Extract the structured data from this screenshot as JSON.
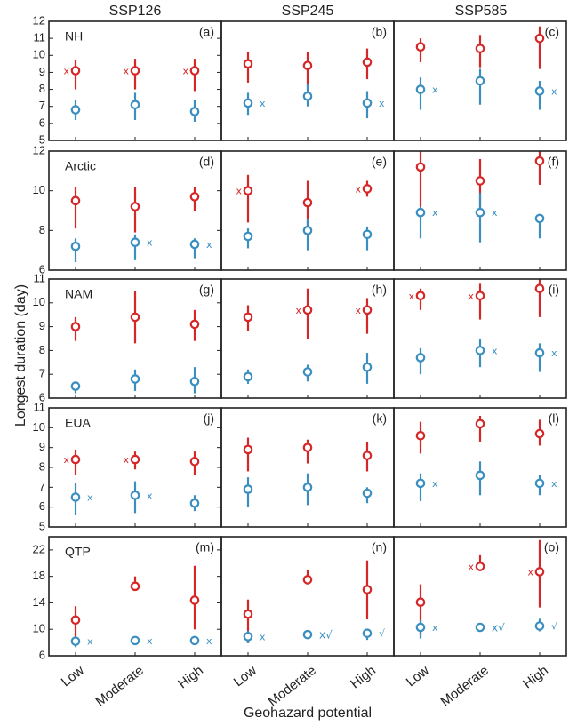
{
  "figure": {
    "columns": [
      "SSP126",
      "SSP245",
      "SSP585"
    ],
    "ylabel": "Longest duration (day)",
    "xlabel": "Geohazard potential",
    "categories": [
      "Low",
      "Moderate",
      "High"
    ],
    "colors": {
      "red": "#d62728",
      "blue": "#3a8fc0",
      "frame": "#222222",
      "text": "#222222"
    }
  },
  "chart_data": [
    {
      "type": "scatter",
      "panel": "(a)",
      "region": "NH",
      "scenario": "SSP126",
      "ylim": [
        5,
        12
      ],
      "yticks": [
        5,
        6,
        7,
        8,
        9,
        10,
        11,
        12
      ],
      "series": [
        {
          "name": "red",
          "values": [
            9.1,
            9.1,
            9.1
          ],
          "lo": [
            8.0,
            8.0,
            7.9
          ],
          "hi": [
            9.7,
            9.8,
            9.8
          ],
          "mark": [
            "x",
            "x",
            "x"
          ]
        },
        {
          "name": "blue",
          "values": [
            6.8,
            7.1,
            6.7
          ],
          "lo": [
            6.2,
            6.2,
            6.1
          ],
          "hi": [
            7.4,
            7.8,
            7.4
          ],
          "mark": [
            "",
            "",
            ""
          ]
        }
      ]
    },
    {
      "type": "scatter",
      "panel": "(b)",
      "region": "",
      "scenario": "SSP245",
      "ylim": [
        5,
        12
      ],
      "yticks": [
        5,
        6,
        7,
        8,
        9,
        10,
        11,
        12
      ],
      "series": [
        {
          "name": "red",
          "values": [
            9.5,
            9.4,
            9.6
          ],
          "lo": [
            8.4,
            8.2,
            8.6
          ],
          "hi": [
            10.2,
            10.2,
            10.4
          ],
          "mark": [
            "",
            "",
            ""
          ]
        },
        {
          "name": "blue",
          "values": [
            7.2,
            7.6,
            7.2
          ],
          "lo": [
            6.5,
            7.0,
            6.3
          ],
          "hi": [
            7.8,
            8.3,
            7.9
          ],
          "mark": [
            "x",
            "",
            "x"
          ]
        }
      ]
    },
    {
      "type": "scatter",
      "panel": "(c)",
      "region": "",
      "scenario": "SSP585",
      "ylim": [
        5,
        12
      ],
      "yticks": [
        5,
        6,
        7,
        8,
        9,
        10,
        11,
        12
      ],
      "series": [
        {
          "name": "red",
          "values": [
            10.5,
            10.4,
            11.0
          ],
          "lo": [
            9.6,
            9.3,
            9.2
          ],
          "hi": [
            11.0,
            11.2,
            11.7
          ],
          "mark": [
            "",
            "",
            ""
          ]
        },
        {
          "name": "blue",
          "values": [
            8.0,
            8.5,
            7.9
          ],
          "lo": [
            6.8,
            7.1,
            6.8
          ],
          "hi": [
            8.7,
            9.2,
            8.5
          ],
          "mark": [
            "x",
            "",
            "x"
          ]
        }
      ]
    },
    {
      "type": "scatter",
      "panel": "(d)",
      "region": "Arctic",
      "scenario": "SSP126",
      "ylim": [
        6,
        12
      ],
      "yticks": [
        6,
        8,
        10,
        12
      ],
      "series": [
        {
          "name": "red",
          "values": [
            9.5,
            9.2,
            9.7
          ],
          "lo": [
            8.1,
            7.9,
            9.0
          ],
          "hi": [
            10.2,
            10.2,
            10.2
          ],
          "mark": [
            "",
            "",
            ""
          ]
        },
        {
          "name": "blue",
          "values": [
            7.2,
            7.4,
            7.3
          ],
          "lo": [
            6.4,
            6.5,
            6.6
          ],
          "hi": [
            7.6,
            7.8,
            7.6
          ],
          "mark": [
            "",
            "x",
            "x"
          ]
        }
      ]
    },
    {
      "type": "scatter",
      "panel": "(e)",
      "region": "",
      "scenario": "SSP245",
      "ylim": [
        6,
        12
      ],
      "yticks": [
        6,
        8,
        10,
        12
      ],
      "series": [
        {
          "name": "red",
          "values": [
            10.0,
            9.4,
            10.1
          ],
          "lo": [
            8.4,
            7.9,
            9.7
          ],
          "hi": [
            10.8,
            10.5,
            10.5
          ],
          "mark": [
            "x",
            "",
            "x"
          ]
        },
        {
          "name": "blue",
          "values": [
            7.7,
            8.0,
            7.8
          ],
          "lo": [
            7.1,
            7.0,
            7.0
          ],
          "hi": [
            8.1,
            8.6,
            8.2
          ],
          "mark": [
            "",
            "",
            ""
          ]
        }
      ]
    },
    {
      "type": "scatter",
      "panel": "(f)",
      "region": "",
      "scenario": "SSP585",
      "ylim": [
        6,
        12
      ],
      "yticks": [
        6,
        8,
        10,
        12
      ],
      "series": [
        {
          "name": "red",
          "values": [
            11.2,
            10.5,
            11.5
          ],
          "lo": [
            9.2,
            9.0,
            10.3
          ],
          "hi": [
            12.0,
            11.6,
            12.0
          ],
          "mark": [
            "",
            "",
            ""
          ]
        },
        {
          "name": "blue",
          "values": [
            8.9,
            8.9,
            8.6
          ],
          "lo": [
            7.6,
            7.4,
            7.6
          ],
          "hi": [
            9.2,
            9.9,
            8.8
          ],
          "mark": [
            "x",
            "x",
            ""
          ]
        }
      ]
    },
    {
      "type": "scatter",
      "panel": "(g)",
      "region": "NAM",
      "scenario": "SSP126",
      "ylim": [
        6,
        11
      ],
      "yticks": [
        6,
        7,
        8,
        9,
        10,
        11
      ],
      "series": [
        {
          "name": "red",
          "values": [
            9.0,
            9.4,
            9.1
          ],
          "lo": [
            8.4,
            8.3,
            8.4
          ],
          "hi": [
            9.4,
            10.5,
            9.7
          ],
          "mark": [
            "",
            "",
            ""
          ]
        },
        {
          "name": "blue",
          "values": [
            6.5,
            6.8,
            6.7
          ],
          "lo": [
            6.2,
            6.3,
            6.2
          ],
          "hi": [
            6.7,
            7.2,
            7.3
          ],
          "mark": [
            "",
            "",
            ""
          ]
        }
      ]
    },
    {
      "type": "scatter",
      "panel": "(h)",
      "region": "",
      "scenario": "SSP245",
      "ylim": [
        6,
        11
      ],
      "yticks": [
        6,
        7,
        8,
        9,
        10,
        11
      ],
      "series": [
        {
          "name": "red",
          "values": [
            9.4,
            9.7,
            9.7
          ],
          "lo": [
            8.8,
            8.5,
            8.7
          ],
          "hi": [
            9.9,
            10.6,
            10.2
          ],
          "mark": [
            "",
            "x",
            "x"
          ]
        },
        {
          "name": "blue",
          "values": [
            6.9,
            7.1,
            7.3
          ],
          "lo": [
            6.6,
            6.7,
            6.6
          ],
          "hi": [
            7.2,
            7.4,
            7.9
          ],
          "mark": [
            "",
            "",
            ""
          ]
        }
      ]
    },
    {
      "type": "scatter",
      "panel": "(i)",
      "region": "",
      "scenario": "SSP585",
      "ylim": [
        6,
        11
      ],
      "yticks": [
        6,
        7,
        8,
        9,
        10,
        11
      ],
      "series": [
        {
          "name": "red",
          "values": [
            10.3,
            10.3,
            10.6
          ],
          "lo": [
            9.7,
            9.3,
            9.4
          ],
          "hi": [
            10.6,
            10.8,
            11.0
          ],
          "mark": [
            "x",
            "x",
            ""
          ]
        },
        {
          "name": "blue",
          "values": [
            7.7,
            8.0,
            7.9
          ],
          "lo": [
            7.0,
            7.3,
            7.1
          ],
          "hi": [
            8.1,
            8.5,
            8.3
          ],
          "mark": [
            "",
            "x",
            "x"
          ]
        }
      ]
    },
    {
      "type": "scatter",
      "panel": "(j)",
      "region": "EUA",
      "scenario": "SSP126",
      "ylim": [
        5,
        11
      ],
      "yticks": [
        5,
        6,
        7,
        8,
        9,
        10,
        11
      ],
      "series": [
        {
          "name": "red",
          "values": [
            8.4,
            8.4,
            8.3
          ],
          "lo": [
            7.6,
            7.9,
            7.6
          ],
          "hi": [
            8.9,
            8.8,
            8.8
          ],
          "mark": [
            "x",
            "x",
            ""
          ]
        },
        {
          "name": "blue",
          "values": [
            6.5,
            6.6,
            6.2
          ],
          "lo": [
            5.6,
            5.7,
            5.8
          ],
          "hi": [
            7.2,
            7.3,
            6.6
          ],
          "mark": [
            "x",
            "x",
            ""
          ]
        }
      ]
    },
    {
      "type": "scatter",
      "panel": "(k)",
      "region": "",
      "scenario": "SSP245",
      "ylim": [
        5,
        11
      ],
      "yticks": [
        5,
        6,
        7,
        8,
        9,
        10,
        11
      ],
      "series": [
        {
          "name": "red",
          "values": [
            8.9,
            9.0,
            8.6
          ],
          "lo": [
            7.8,
            8.2,
            7.8
          ],
          "hi": [
            9.5,
            9.4,
            9.3
          ],
          "mark": [
            "",
            "",
            ""
          ]
        },
        {
          "name": "blue",
          "values": [
            6.9,
            7.0,
            6.7
          ],
          "lo": [
            6.0,
            6.1,
            6.2
          ],
          "hi": [
            7.5,
            7.7,
            7.0
          ],
          "mark": [
            "",
            "",
            ""
          ]
        }
      ]
    },
    {
      "type": "scatter",
      "panel": "(l)",
      "region": "",
      "scenario": "SSP585",
      "ylim": [
        5,
        11
      ],
      "yticks": [
        5,
        6,
        7,
        8,
        9,
        10,
        11
      ],
      "series": [
        {
          "name": "red",
          "values": [
            9.6,
            10.2,
            9.7
          ],
          "lo": [
            8.7,
            9.3,
            9.1
          ],
          "hi": [
            10.3,
            10.6,
            10.4
          ],
          "mark": [
            "",
            "",
            ""
          ]
        },
        {
          "name": "blue",
          "values": [
            7.2,
            7.6,
            7.2
          ],
          "lo": [
            6.3,
            6.6,
            6.6
          ],
          "hi": [
            7.7,
            8.3,
            7.6
          ],
          "mark": [
            "x",
            "",
            "x"
          ]
        }
      ]
    },
    {
      "type": "scatter",
      "panel": "(m)",
      "region": "QTP",
      "scenario": "SSP126",
      "ylim": [
        6,
        24
      ],
      "yticks": [
        6,
        10,
        14,
        18,
        22
      ],
      "series": [
        {
          "name": "red",
          "values": [
            11.4,
            16.5,
            14.4
          ],
          "lo": [
            7.5,
            16.0,
            10.0
          ],
          "hi": [
            13.5,
            18.0,
            19.6
          ],
          "mark": [
            "",
            "",
            ""
          ]
        },
        {
          "name": "blue",
          "values": [
            8.2,
            8.3,
            8.3
          ],
          "lo": [
            7.3,
            7.9,
            7.8
          ],
          "hi": [
            8.8,
            8.7,
            8.6
          ],
          "mark": [
            "x",
            "x",
            "x"
          ]
        }
      ]
    },
    {
      "type": "scatter",
      "panel": "(n)",
      "region": "",
      "scenario": "SSP245",
      "ylim": [
        6,
        24
      ],
      "yticks": [
        6,
        10,
        14,
        18,
        22
      ],
      "series": [
        {
          "name": "red",
          "values": [
            12.3,
            17.5,
            16.0
          ],
          "lo": [
            7.9,
            16.8,
            11.5
          ],
          "hi": [
            14.5,
            19.0,
            20.4
          ],
          "mark": [
            "",
            "",
            ""
          ]
        },
        {
          "name": "blue",
          "values": [
            8.9,
            9.2,
            9.4
          ],
          "lo": [
            7.9,
            8.8,
            8.4
          ],
          "hi": [
            9.8,
            9.6,
            10.1
          ],
          "mark": [
            "x",
            "x√",
            "√"
          ]
        }
      ]
    },
    {
      "type": "scatter",
      "panel": "(o)",
      "region": "",
      "scenario": "SSP585",
      "ylim": [
        6,
        24
      ],
      "yticks": [
        6,
        10,
        14,
        18,
        22
      ],
      "series": [
        {
          "name": "red",
          "values": [
            14.1,
            19.5,
            18.7
          ],
          "lo": [
            9.1,
            18.8,
            13.3
          ],
          "hi": [
            16.8,
            21.2,
            23.5
          ],
          "mark": [
            "",
            "x",
            "x"
          ]
        },
        {
          "name": "blue",
          "values": [
            10.3,
            10.3,
            10.5
          ],
          "lo": [
            8.6,
            9.8,
            9.7
          ],
          "hi": [
            11.4,
            10.7,
            11.6
          ],
          "mark": [
            "x",
            "x√",
            "√"
          ]
        }
      ]
    }
  ]
}
